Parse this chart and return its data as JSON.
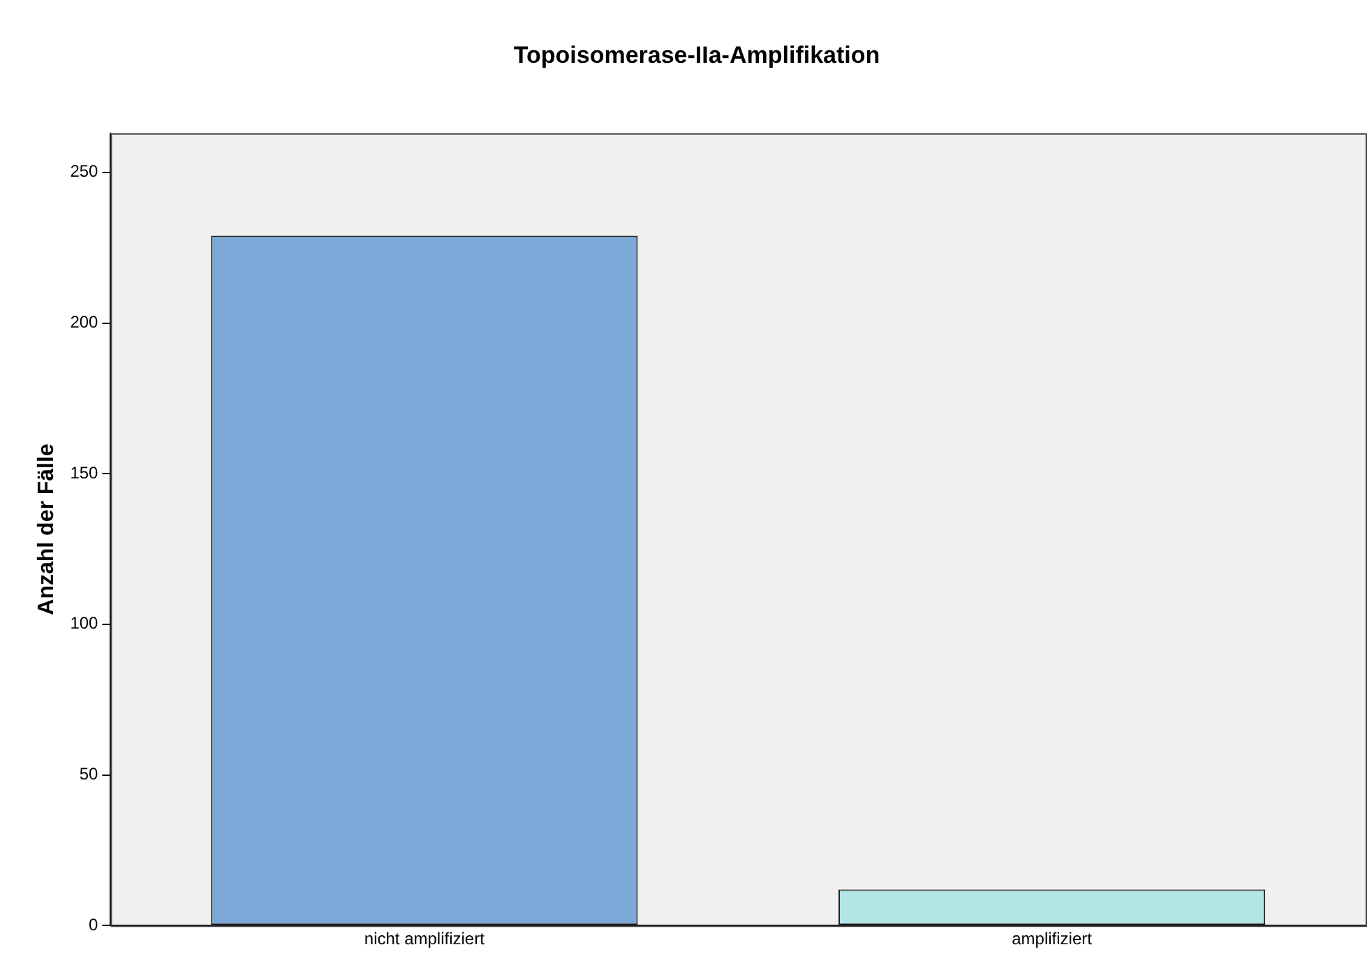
{
  "chart_data": {
    "type": "bar",
    "title": "Topoisomerase-IIa-Amplifikation",
    "ylabel": "Anzahl der Fälle",
    "categories": [
      "nicht amplifiziert",
      "amplifiziert"
    ],
    "values": [
      229,
      12
    ],
    "colors": [
      "#7ba8d6",
      "#b2e5e5"
    ],
    "ylim": [
      0,
      263
    ],
    "yticks": [
      0,
      50,
      100,
      150,
      200,
      250
    ],
    "grid": false,
    "legend": false
  }
}
